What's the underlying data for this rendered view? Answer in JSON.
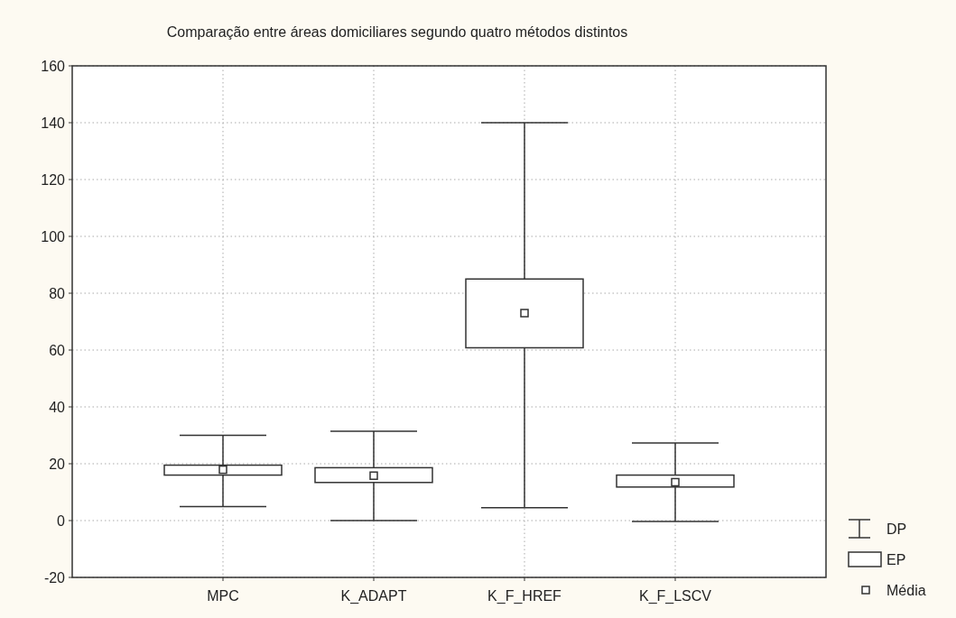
{
  "chart_data": {
    "type": "box",
    "title": "Comparação entre áreas domiciliares segundo quatro métodos distintos",
    "categories": [
      "MPC",
      "K_ADAPT",
      "K_F_HREF",
      "K_F_LSCV"
    ],
    "boxes": [
      {
        "low": 4.9,
        "q1": 16,
        "q3": 19.5,
        "high": 30,
        "mean": 17.9
      },
      {
        "low": 0,
        "q1": 13.4,
        "q3": 18.6,
        "high": 31.4,
        "mean": 15.8
      },
      {
        "low": 4.5,
        "q1": 60.8,
        "q3": 85,
        "high": 140,
        "mean": 73
      },
      {
        "low": -0.3,
        "q1": 11.8,
        "q3": 16,
        "high": 27.3,
        "mean": 13.5
      }
    ],
    "ylim": [
      -20,
      160
    ],
    "yticks": [
      -20,
      0,
      20,
      40,
      60,
      80,
      100,
      120,
      140,
      160
    ],
    "grid": true,
    "annotations": [
      "DP",
      "EP",
      "Média"
    ]
  }
}
